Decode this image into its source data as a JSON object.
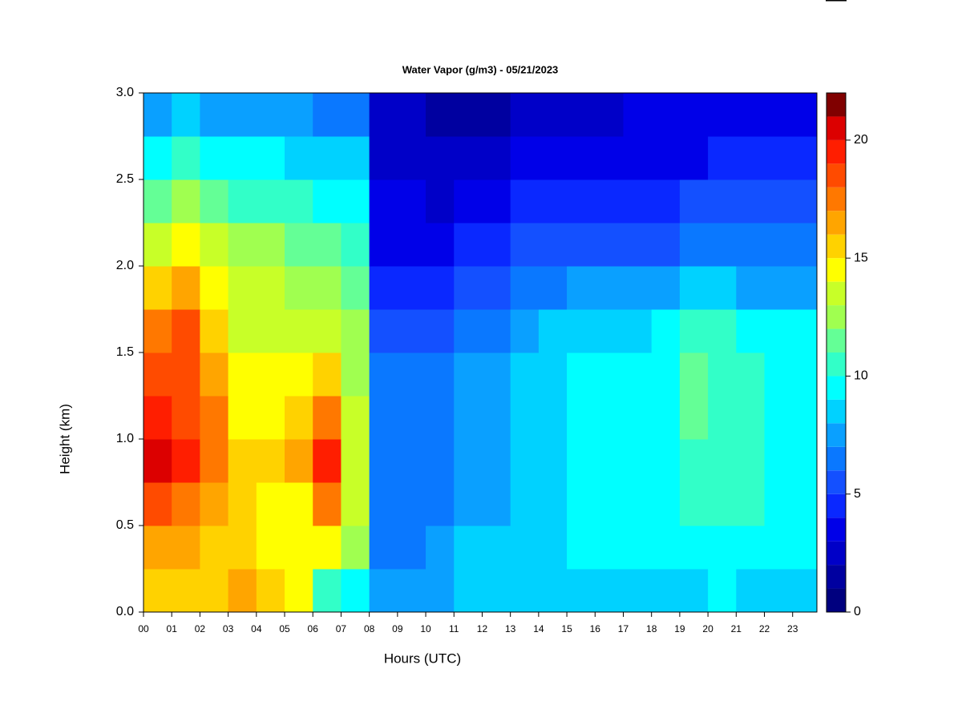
{
  "chart_data": {
    "type": "heatmap",
    "title": "Water Vapor (g/m3) - 05/21/2023",
    "x_label": "Hours (UTC)",
    "y_label": "Height (km)",
    "xlim": [
      0,
      23.86
    ],
    "ylim": [
      0,
      3
    ],
    "xticks": [
      {
        "value": 0,
        "label": "00"
      },
      {
        "value": 1,
        "label": "01"
      },
      {
        "value": 2,
        "label": "02"
      },
      {
        "value": 3,
        "label": "03"
      },
      {
        "value": 4,
        "label": "04"
      },
      {
        "value": 5,
        "label": "05"
      },
      {
        "value": 6,
        "label": "06"
      },
      {
        "value": 7,
        "label": "07"
      },
      {
        "value": 8,
        "label": "08"
      },
      {
        "value": 9,
        "label": "09"
      },
      {
        "value": 10,
        "label": "10"
      },
      {
        "value": 11,
        "label": "11"
      },
      {
        "value": 12,
        "label": "12"
      },
      {
        "value": 13,
        "label": "13"
      },
      {
        "value": 14,
        "label": "14"
      },
      {
        "value": 15,
        "label": "15"
      },
      {
        "value": 16,
        "label": "16"
      },
      {
        "value": 17,
        "label": "17"
      },
      {
        "value": 18,
        "label": "18"
      },
      {
        "value": 19,
        "label": "19"
      },
      {
        "value": 20,
        "label": "20"
      },
      {
        "value": 21,
        "label": "21"
      },
      {
        "value": 22,
        "label": "22"
      },
      {
        "value": 23,
        "label": "23"
      }
    ],
    "yticks": [
      {
        "value": 0,
        "label": "0.0"
      },
      {
        "value": 0.5,
        "label": "0.5"
      },
      {
        "value": 1,
        "label": "1.0"
      },
      {
        "value": 1.5,
        "label": "1.5"
      },
      {
        "value": 2,
        "label": "2.0"
      },
      {
        "value": 2.5,
        "label": "2.5"
      },
      {
        "value": 3,
        "label": "3.0"
      }
    ],
    "x": [
      0.5,
      1.5,
      2.5,
      3.5,
      4.5,
      5.5,
      6.5,
      7.5,
      8.5,
      9.5,
      10.5,
      11.5,
      12.5,
      13.5,
      14.5,
      15.5,
      16.5,
      17.5,
      18.5,
      19.5,
      20.5,
      21.5,
      22.5,
      23.5
    ],
    "y": [
      0.125,
      0.375,
      0.625,
      0.875,
      1.125,
      1.375,
      1.625,
      1.875,
      2.125,
      2.375,
      2.625,
      2.875
    ],
    "z": [
      [
        15,
        15,
        15,
        16,
        15,
        14,
        10,
        9,
        7,
        7,
        7,
        8,
        8,
        8,
        8,
        8,
        8,
        8,
        8,
        8,
        9,
        8,
        8,
        8
      ],
      [
        16,
        16,
        15,
        15,
        14,
        14,
        14,
        12,
        6,
        6,
        7,
        8,
        8,
        8,
        8,
        9,
        9,
        9,
        9,
        9,
        9,
        9,
        9,
        9
      ],
      [
        18,
        17,
        16,
        15,
        14,
        14,
        17,
        13,
        6,
        6,
        6,
        7,
        7,
        8,
        8,
        9,
        9,
        9,
        9,
        10,
        10,
        10,
        9,
        9
      ],
      [
        20,
        19,
        17,
        15,
        15,
        16,
        19,
        13,
        6,
        6,
        6,
        7,
        7,
        8,
        8,
        9,
        9,
        9,
        9,
        10,
        10,
        10,
        9,
        9
      ],
      [
        19,
        18,
        17,
        14,
        14,
        15,
        17,
        13,
        6,
        6,
        6,
        7,
        7,
        8,
        8,
        9,
        9,
        9,
        9,
        11,
        10,
        10,
        9,
        9
      ],
      [
        18,
        18,
        16,
        14,
        14,
        14,
        15,
        12,
        6,
        6,
        6,
        7,
        7,
        8,
        8,
        9,
        9,
        9,
        9,
        11,
        10,
        10,
        9,
        9
      ],
      [
        17,
        18,
        15,
        13,
        13,
        13,
        13,
        12,
        5,
        5,
        5,
        6,
        6,
        7,
        8,
        8,
        8,
        8,
        9,
        10,
        10,
        9,
        9,
        9
      ],
      [
        15,
        16,
        14,
        13,
        13,
        12,
        12,
        11,
        4,
        4,
        4,
        5,
        5,
        6,
        6,
        7,
        7,
        7,
        7,
        8,
        8,
        7,
        7,
        7
      ],
      [
        13,
        14,
        13,
        12,
        12,
        11,
        11,
        10,
        3,
        3,
        3,
        4,
        4,
        5,
        5,
        5,
        5,
        5,
        5,
        6,
        6,
        6,
        6,
        6
      ],
      [
        11,
        12,
        11,
        10,
        10,
        10,
        9,
        9,
        3,
        3,
        2,
        3,
        3,
        4,
        4,
        4,
        4,
        4,
        4,
        5,
        5,
        5,
        5,
        5
      ],
      [
        9,
        10,
        9,
        9,
        9,
        8,
        8,
        8,
        2,
        2,
        2,
        2,
        2,
        3,
        3,
        3,
        3,
        3,
        3,
        3,
        4,
        4,
        4,
        4
      ],
      [
        7,
        8,
        7,
        7,
        7,
        7,
        6,
        6,
        2,
        2,
        1,
        1,
        1,
        2,
        2,
        2,
        2,
        3,
        3,
        3,
        3,
        3,
        3,
        3
      ]
    ],
    "colorbar": {
      "levels": [
        0,
        1,
        2,
        3,
        4,
        5,
        6,
        7,
        8,
        9,
        10,
        11,
        12,
        13,
        14,
        15,
        16,
        17,
        18,
        19,
        20,
        21,
        22
      ],
      "colors": [
        "#00007f",
        "#0000a0",
        "#0000c8",
        "#0000e8",
        "#0a28ff",
        "#1450ff",
        "#0a78ff",
        "#0aa0ff",
        "#00d2ff",
        "#00ffff",
        "#32ffc8",
        "#64ff96",
        "#a0ff50",
        "#c8ff28",
        "#ffff00",
        "#ffd200",
        "#ffa500",
        "#ff7800",
        "#ff4b00",
        "#ff1e00",
        "#dc0000",
        "#800000"
      ],
      "ticks": [
        0,
        5,
        10,
        15,
        20
      ]
    }
  }
}
